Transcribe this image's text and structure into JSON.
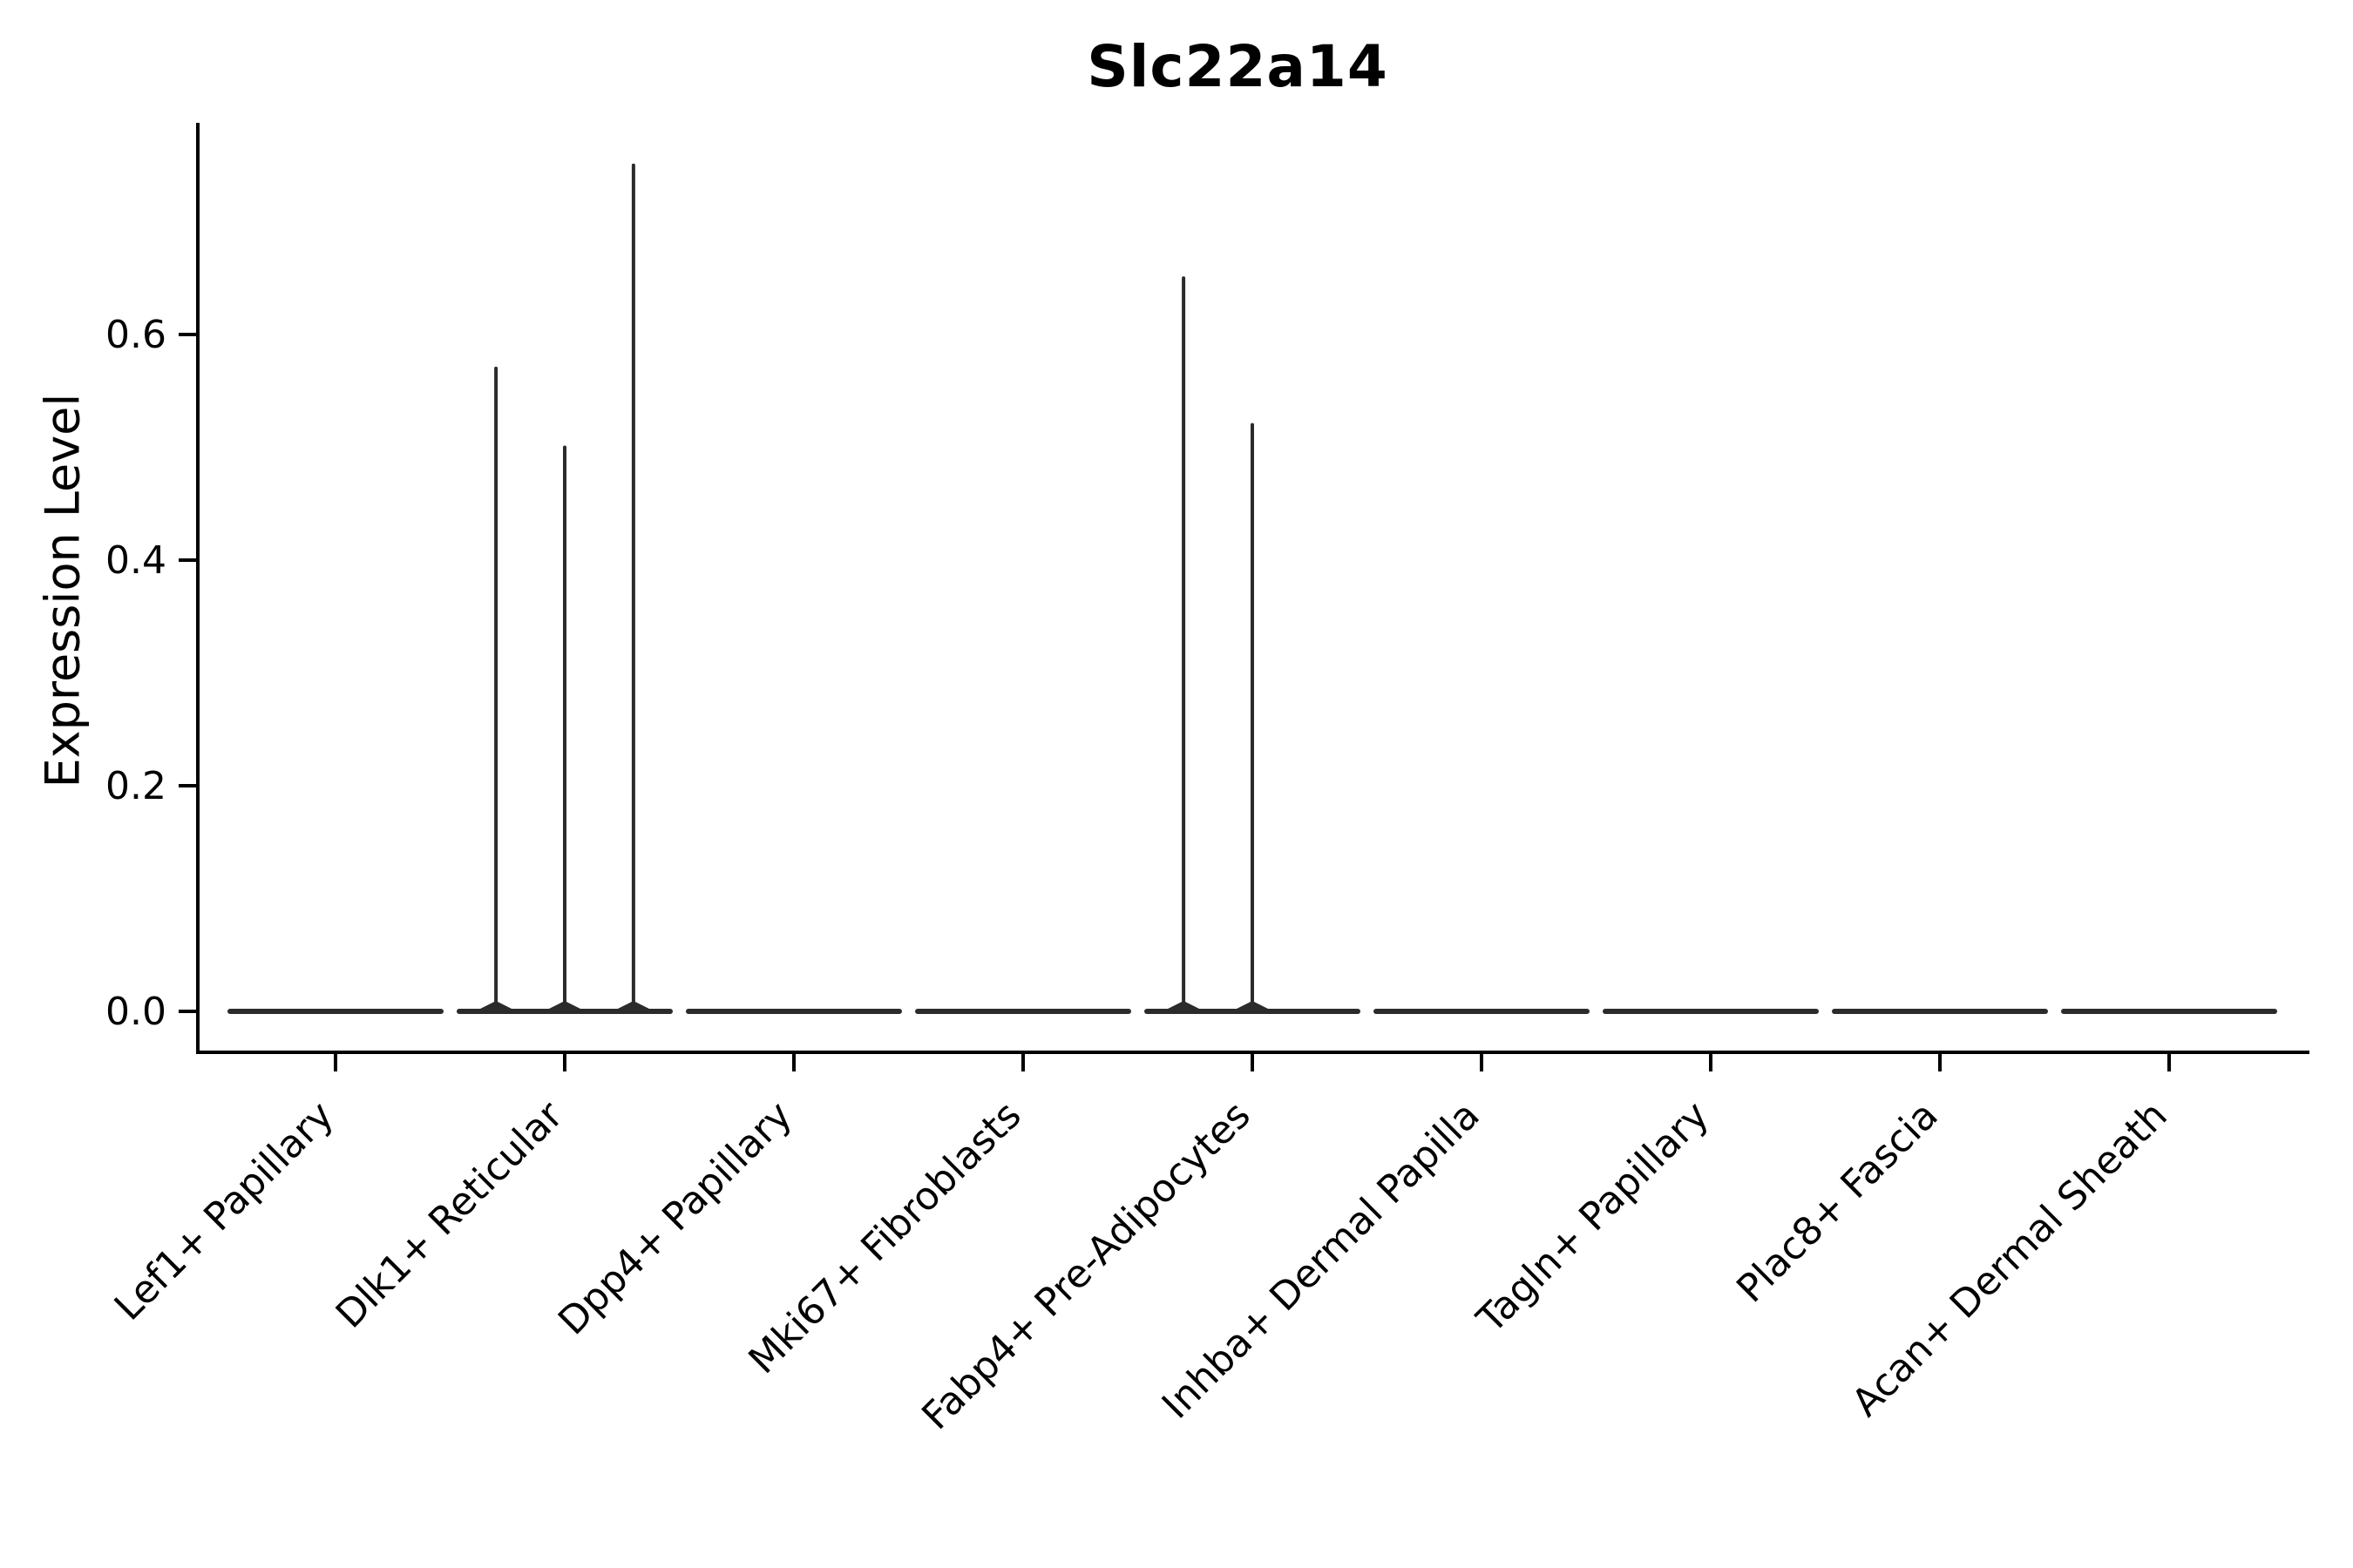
{
  "chart_data": {
    "type": "violin",
    "title": "Slc22a14",
    "xlabel": "",
    "ylabel": "Expression Level",
    "yticks": [
      "0.0",
      "0.2",
      "0.4",
      "0.6"
    ],
    "ytick_values": [
      0.0,
      0.2,
      0.4,
      0.6
    ],
    "ylim": [
      -0.036,
      0.788
    ],
    "grid": false,
    "legend": null,
    "x_tick_rotation_deg": 45,
    "categories": [
      "Lef1+ Papillary",
      "Dlk1+ Reticular",
      "Dpp4+ Papillary",
      "Mki67+ Fibroblasts",
      "Fabp4+ Pre-Adipocytes",
      "Inhba+ Dermal Papilla",
      "Tagln+ Papillary",
      "Plac8+ Fascia",
      "Acan+ Dermal Sheath"
    ],
    "violins": [
      {
        "category": "Lef1+ Papillary",
        "baseline_value": 0.0,
        "spikes": []
      },
      {
        "category": "Dlk1+ Reticular",
        "baseline_value": 0.0,
        "spikes": [
          {
            "rel_x": -0.3,
            "max": 0.57
          },
          {
            "rel_x": 0.0,
            "max": 0.5
          },
          {
            "rel_x": 0.3,
            "max": 0.75
          }
        ]
      },
      {
        "category": "Dpp4+ Papillary",
        "baseline_value": 0.0,
        "spikes": []
      },
      {
        "category": "Mki67+ Fibroblasts",
        "baseline_value": 0.0,
        "spikes": []
      },
      {
        "category": "Fabp4+ Pre-Adipocytes",
        "baseline_value": 0.0,
        "spikes": [
          {
            "rel_x": -0.3,
            "max": 0.65
          },
          {
            "rel_x": 0.0,
            "max": 0.52
          }
        ]
      },
      {
        "category": "Inhba+ Dermal Papilla",
        "baseline_value": 0.0,
        "spikes": []
      },
      {
        "category": "Tagln+ Papillary",
        "baseline_value": 0.0,
        "spikes": []
      },
      {
        "category": "Plac8+ Fascia",
        "baseline_value": 0.0,
        "spikes": []
      },
      {
        "category": "Acan+ Dermal Sheath",
        "baseline_value": 0.0,
        "spikes": []
      }
    ],
    "colors": {
      "violin_line": "#2b2b2b",
      "axis": "#000000",
      "text": "#000000",
      "background": "#ffffff"
    }
  }
}
